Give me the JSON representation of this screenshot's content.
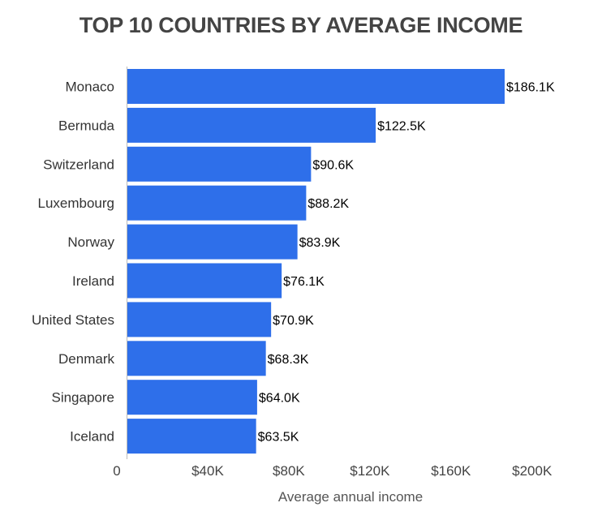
{
  "chart_data": {
    "type": "bar",
    "orientation": "horizontal",
    "title": "TOP 10 COUNTRIES BY AVERAGE INCOME",
    "xlabel": "Average annual income",
    "ylabel": "",
    "categories": [
      "Monaco",
      "Bermuda",
      "Switzerland",
      "Luxembourg",
      "Norway",
      "Ireland",
      "United States",
      "Denmark",
      "Singapore",
      "Iceland"
    ],
    "values": [
      186.1,
      122.5,
      90.6,
      88.2,
      83.9,
      76.1,
      70.9,
      68.3,
      64.0,
      63.5
    ],
    "value_unit": "thousand USD",
    "data_labels": [
      "$186.1K",
      "$122.5K",
      "$90.6K",
      "$88.2K",
      "$83.9K",
      "$76.1K",
      "$70.9K",
      "$68.3K",
      "$64.0K",
      "$63.5K"
    ],
    "xlim": [
      0,
      200
    ],
    "x_ticks": [
      0,
      40,
      80,
      120,
      160,
      200
    ],
    "x_tick_labels": [
      "0",
      "$40K",
      "$80K",
      "$120K",
      "$160K",
      "$200K"
    ],
    "bar_color": "#2e6fea",
    "grid": false,
    "legend": "none"
  }
}
